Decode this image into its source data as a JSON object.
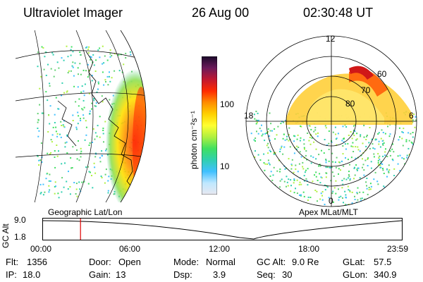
{
  "header": {
    "instrument": "Ultraviolet Imager",
    "date": "26 Aug 00",
    "time": "02:30:48 UT"
  },
  "geo_panel": {
    "label": "Geographic Lat/Lon"
  },
  "polar_panel": {
    "label": "Apex MLat/MLT",
    "mlt_labels": {
      "top": "12",
      "left": "18",
      "right": "6",
      "bottom": "0"
    },
    "lat_labels": [
      "60",
      "70",
      "80"
    ]
  },
  "colorbar": {
    "unit_label": "photon cm⁻²s⁻¹",
    "ticks": [
      "100",
      "10"
    ],
    "scale": "log",
    "colors": [
      "#1a0a2a",
      "#6a1a5a",
      "#c01830",
      "#ff2a00",
      "#ff8c00",
      "#ffd000",
      "#ffff30",
      "#b0f040",
      "#40e060",
      "#30d0b0",
      "#40c0ff",
      "#c0e8ff",
      "#e8e8f0"
    ]
  },
  "altitude_plot": {
    "y_axis_label": "GC Alt",
    "y_ticks": [
      "9.0",
      "1.8"
    ],
    "x_ticks": [
      "00:00",
      "06:00",
      "12:00",
      "18:00",
      "23:59"
    ],
    "current_time_marker_color": "#e00000",
    "current_time_hours": 2.51
  },
  "status": {
    "flt": {
      "label": "Flt:",
      "value": "1356"
    },
    "ip": {
      "label": "IP:",
      "value": "18.0"
    },
    "door": {
      "label": "Door:",
      "value": "Open"
    },
    "gain": {
      "label": "Gain:",
      "value": "13"
    },
    "mode": {
      "label": "Mode:",
      "value": "Normal"
    },
    "dsp": {
      "label": "Dsp:",
      "value": "3.9"
    },
    "gc_alt": {
      "label": "GC Alt:",
      "value": "9.0 Re"
    },
    "seq": {
      "label": "Seq:",
      "value": "30"
    },
    "glat": {
      "label": "GLat:",
      "value": "57.5"
    },
    "glon": {
      "label": "GLon:",
      "value": "340.9"
    }
  }
}
